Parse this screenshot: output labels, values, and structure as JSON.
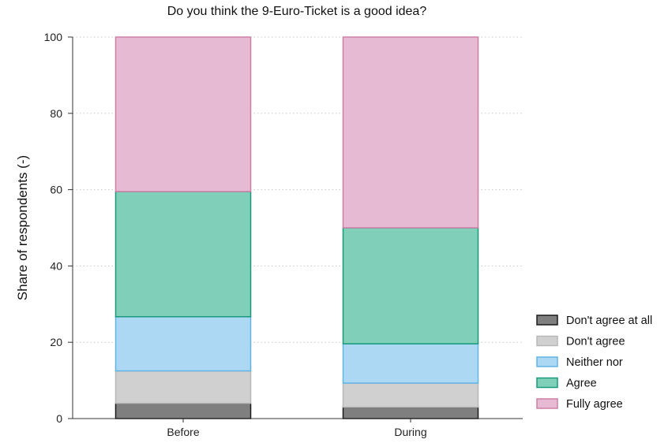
{
  "chart_data": {
    "type": "bar",
    "stacked": true,
    "title": "Do you think the 9-Euro-Ticket is a good idea?",
    "xlabel": "",
    "ylabel": "Share of respondents (-)",
    "ylim": [
      0,
      100
    ],
    "yticks": [
      0,
      20,
      40,
      60,
      80,
      100
    ],
    "grid": true,
    "legend_position": "right",
    "categories": [
      "Before",
      "During"
    ],
    "series": [
      {
        "name": "Don't agree at all",
        "values": [
          4,
          3
        ],
        "fill": "#7f7f7f",
        "stroke": "#1a1a1a"
      },
      {
        "name": "Don't agree",
        "values": [
          8.5,
          6.3
        ],
        "fill": "#d0d0d0",
        "stroke": "#b8b8b8"
      },
      {
        "name": "Neither nor",
        "values": [
          14.2,
          10.3
        ],
        "fill": "#acd8f3",
        "stroke": "#62b4e4"
      },
      {
        "name": "Agree",
        "values": [
          32.8,
          30.4
        ],
        "fill": "#80d0b9",
        "stroke": "#179b7c"
      },
      {
        "name": "Fully agree",
        "values": [
          40.5,
          50
        ],
        "fill": "#e6bad2",
        "stroke": "#cd7fa8"
      }
    ]
  }
}
